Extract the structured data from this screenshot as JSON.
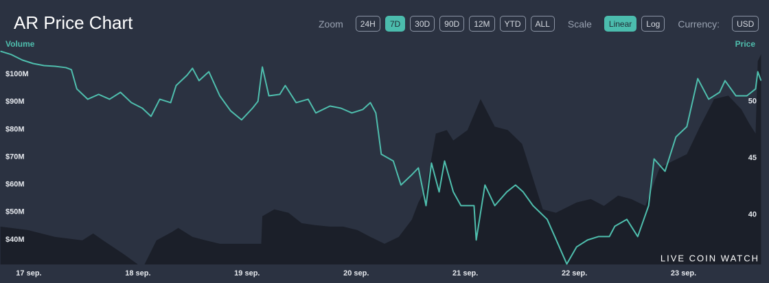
{
  "chart_data": {
    "type": "line",
    "title": "AR Price Chart",
    "ylabel": "Volume",
    "y2label": "Price",
    "xlim": [
      -0.264,
      6.72
    ],
    "xticks": [
      {
        "value": 0,
        "label": "17 sep."
      },
      {
        "value": 1,
        "label": "18 sep."
      },
      {
        "value": 2,
        "label": "19 sep."
      },
      {
        "value": 3,
        "label": "20 sep."
      },
      {
        "value": 4,
        "label": "21 sep."
      },
      {
        "value": 5,
        "label": "22 sep."
      },
      {
        "value": 6,
        "label": "23 sep."
      }
    ],
    "ylim": [
      31000000,
      112000000
    ],
    "yticks": [
      {
        "value": 40000000,
        "label": "$40M"
      },
      {
        "value": 50000000,
        "label": "$50M"
      },
      {
        "value": 60000000,
        "label": "$60M"
      },
      {
        "value": 70000000,
        "label": "$70M"
      },
      {
        "value": 80000000,
        "label": "$80M"
      },
      {
        "value": 90000000,
        "label": "$90M"
      },
      {
        "value": 100000000,
        "label": "$100M"
      }
    ],
    "y2lim": [
      35.6,
      55.3
    ],
    "y2ticks": [
      40,
      45,
      50
    ],
    "series": [
      {
        "type": "area",
        "axis": "y",
        "color": "#1b1f29",
        "x": [
          -0.26,
          -0.01,
          0.24,
          0.49,
          0.59,
          0.68,
          0.87,
          1.0,
          1.06,
          1.17,
          1.31,
          1.37,
          1.5,
          1.62,
          1.75,
          2.0,
          2.13,
          2.14,
          2.25,
          2.38,
          2.5,
          2.63,
          2.76,
          2.88,
          3.01,
          3.13,
          3.26,
          3.39,
          3.51,
          3.57,
          3.64,
          3.73,
          3.83,
          3.89,
          4.02,
          4.14,
          4.27,
          4.39,
          4.52,
          4.58,
          4.71,
          4.83,
          5.02,
          5.15,
          5.27,
          5.4,
          5.52,
          5.65,
          5.71,
          5.78,
          5.9,
          6.03,
          6.15,
          6.28,
          6.41,
          6.53,
          6.6,
          6.66,
          6.68,
          6.71
        ],
        "values": [
          44750000,
          43500000,
          41000000,
          39750000,
          42250000,
          39750000,
          34750000,
          31000000,
          31000000,
          39750000,
          42750000,
          44250000,
          41000000,
          39750000,
          38500000,
          38500000,
          38500000,
          48500000,
          51000000,
          49750000,
          46000000,
          45250000,
          44750000,
          44750000,
          43500000,
          41000000,
          38500000,
          41000000,
          47250000,
          53500000,
          58500000,
          78500000,
          79750000,
          76000000,
          79750000,
          91000000,
          81000000,
          79750000,
          74750000,
          67250000,
          51000000,
          49750000,
          53500000,
          54750000,
          52250000,
          56000000,
          54750000,
          52250000,
          58500000,
          66000000,
          68500000,
          71000000,
          81000000,
          91000000,
          92250000,
          87250000,
          82250000,
          78500000,
          104750000,
          107250000
        ]
      },
      {
        "type": "line",
        "axis": "y2",
        "color": "#4fbfae",
        "x": [
          -0.26,
          -0.16,
          -0.06,
          0.04,
          0.14,
          0.24,
          0.34,
          0.39,
          0.44,
          0.54,
          0.64,
          0.74,
          0.84,
          0.94,
          1.04,
          1.12,
          1.2,
          1.3,
          1.35,
          1.45,
          1.5,
          1.56,
          1.65,
          1.75,
          1.85,
          1.95,
          2.05,
          2.1,
          2.14,
          2.2,
          2.3,
          2.35,
          2.45,
          2.56,
          2.63,
          2.76,
          2.86,
          2.96,
          3.06,
          3.13,
          3.18,
          3.23,
          3.34,
          3.41,
          3.51,
          3.57,
          3.64,
          3.69,
          3.76,
          3.81,
          3.89,
          3.96,
          4.08,
          4.1,
          4.18,
          4.27,
          4.38,
          4.46,
          4.53,
          4.62,
          4.75,
          4.82,
          4.93,
          5.02,
          5.12,
          5.22,
          5.32,
          5.37,
          5.48,
          5.58,
          5.68,
          5.73,
          5.83,
          5.93,
          6.03,
          6.13,
          6.23,
          6.33,
          6.38,
          6.48,
          6.58,
          6.66,
          6.68,
          6.71
        ],
        "values": [
          54.42,
          54.12,
          53.64,
          53.33,
          53.15,
          53.09,
          52.97,
          52.79,
          51.09,
          50.18,
          50.61,
          50.18,
          50.79,
          49.88,
          49.39,
          48.67,
          50.18,
          49.88,
          51.39,
          52.3,
          52.91,
          51.82,
          52.61,
          50.48,
          49.15,
          48.36,
          49.39,
          50,
          53.03,
          50.48,
          50.61,
          51.39,
          49.88,
          50.18,
          48.97,
          49.58,
          49.39,
          48.97,
          49.27,
          49.88,
          48.97,
          45.33,
          44.73,
          42.61,
          43.52,
          44.12,
          40.79,
          44.55,
          42,
          44.73,
          42,
          40.79,
          40.79,
          37.76,
          42.61,
          40.79,
          42,
          42.61,
          42,
          40.79,
          39.58,
          38.06,
          35.64,
          37.15,
          37.76,
          38.06,
          38.06,
          38.97,
          39.58,
          38.06,
          40.79,
          44.91,
          43.82,
          46.85,
          47.76,
          52,
          50.18,
          50.79,
          51.82,
          50.48,
          50.48,
          51.09,
          52.61,
          51.82
        ]
      }
    ]
  },
  "controls": {
    "zoom_label": "Zoom",
    "zoom": [
      "24H",
      "7D",
      "30D",
      "90D",
      "12M",
      "YTD",
      "ALL"
    ],
    "zoom_selected": 1,
    "scale_label": "Scale",
    "scale": [
      "Linear",
      "Log"
    ],
    "scale_selected": 0,
    "currency_label": "Currency:",
    "currency": [
      "USD"
    ]
  },
  "brand": "LIVE COIN WATCH"
}
